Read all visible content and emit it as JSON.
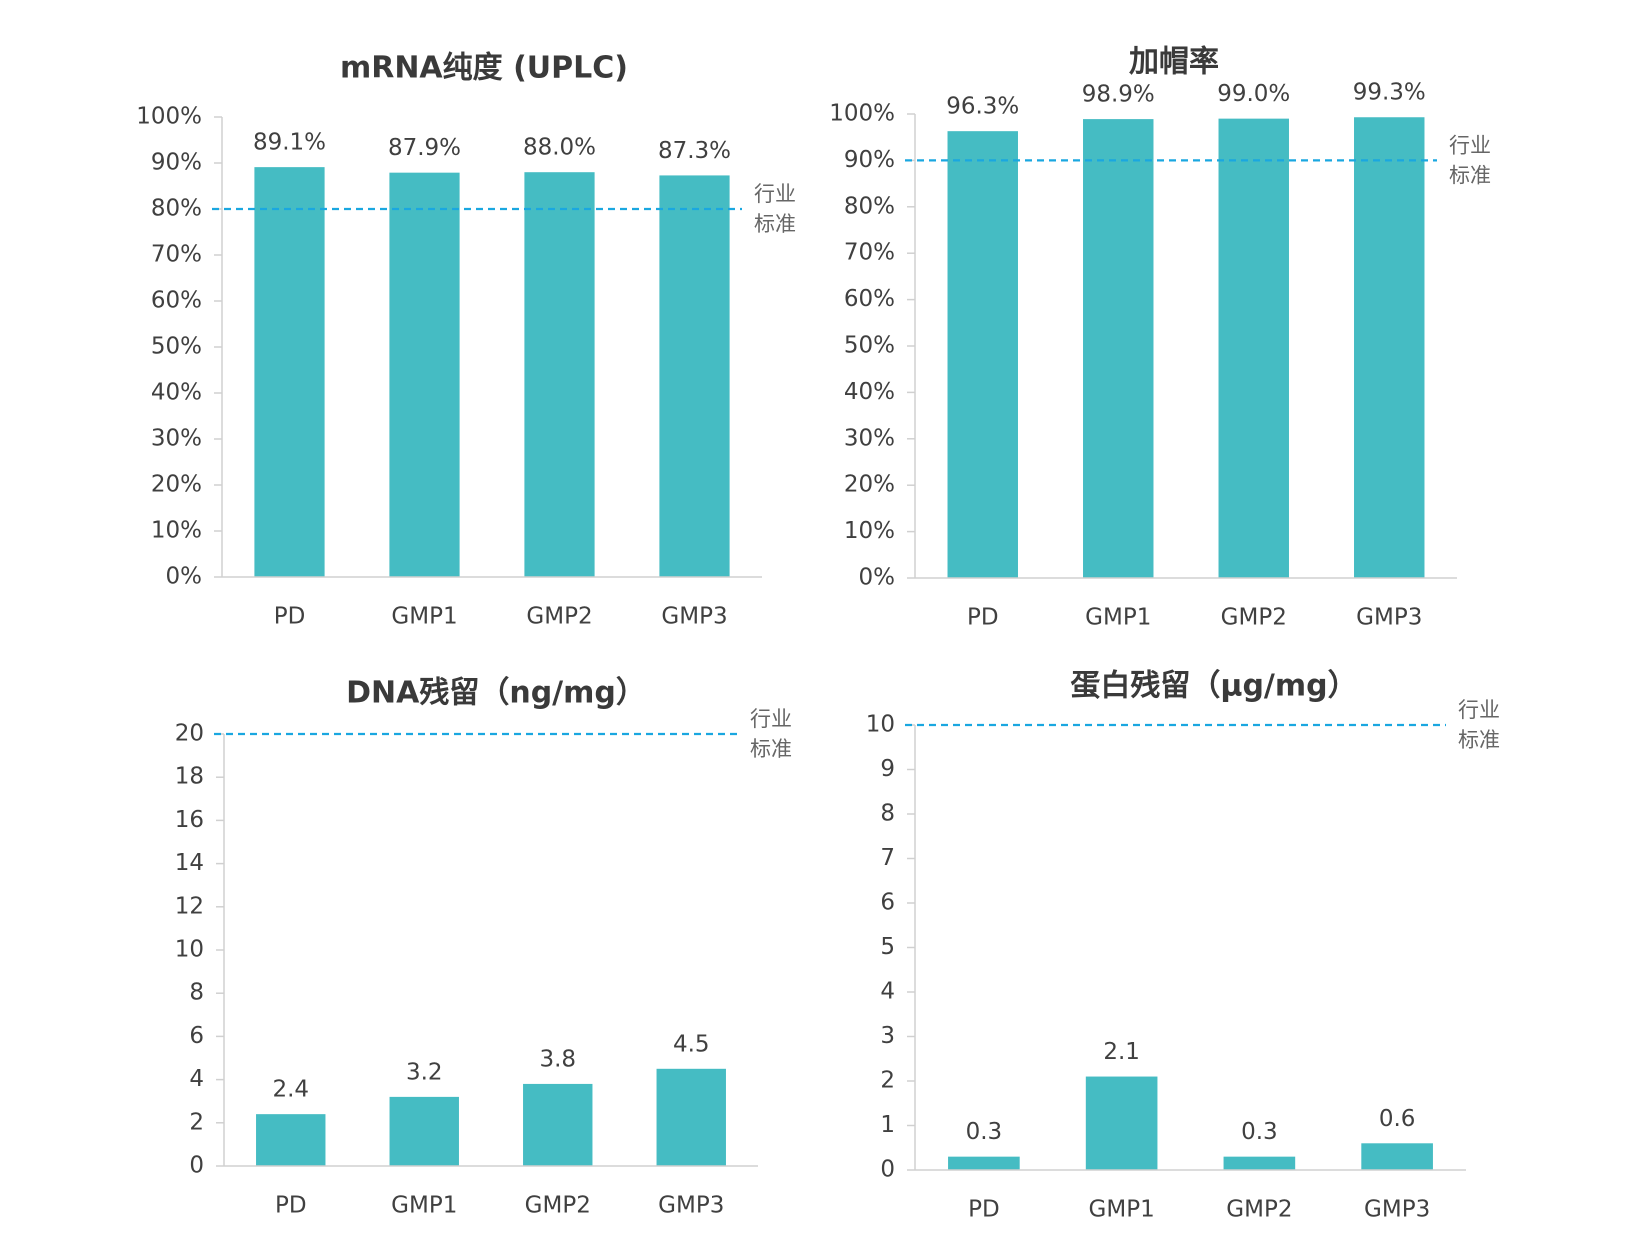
{
  "chart_data": [
    {
      "type": "bar",
      "title": "mRNA纯度 (UPLC)",
      "categories": [
        "PD",
        "GMP1",
        "GMP2",
        "GMP3"
      ],
      "values": [
        89.1,
        87.9,
        88.0,
        87.3
      ],
      "value_labels": [
        "89.1%",
        "87.9%",
        "88.0%",
        "87.3%"
      ],
      "color": "#45bcc3",
      "ylim": [
        0,
        100
      ],
      "yticks": [
        {
          "value": 0,
          "label": "0%"
        },
        {
          "value": 10,
          "label": "10%"
        },
        {
          "value": 20,
          "label": "20%"
        },
        {
          "value": 30,
          "label": "30%"
        },
        {
          "value": 40,
          "label": "40%"
        },
        {
          "value": 50,
          "label": "50%"
        },
        {
          "value": 60,
          "label": "60%"
        },
        {
          "value": 70,
          "label": "70%"
        },
        {
          "value": 80,
          "label": "80%"
        },
        {
          "value": 90,
          "label": "90%"
        },
        {
          "value": 100,
          "label": "100%"
        }
      ],
      "reference_value": 80,
      "reference_label": [
        "行业",
        "标准"
      ],
      "reference_color": "#1aa7e0"
    },
    {
      "type": "bar",
      "title": "加帽率",
      "categories": [
        "PD",
        "GMP1",
        "GMP2",
        "GMP3"
      ],
      "values": [
        96.3,
        98.9,
        99.0,
        99.3
      ],
      "value_labels": [
        "96.3%",
        "98.9%",
        "99.0%",
        "99.3%"
      ],
      "color": "#45bcc3",
      "ylim": [
        0,
        100
      ],
      "yticks": [
        {
          "value": 0,
          "label": "0%"
        },
        {
          "value": 10,
          "label": "10%"
        },
        {
          "value": 20,
          "label": "20%"
        },
        {
          "value": 30,
          "label": "30%"
        },
        {
          "value": 40,
          "label": "40%"
        },
        {
          "value": 50,
          "label": "50%"
        },
        {
          "value": 60,
          "label": "60%"
        },
        {
          "value": 70,
          "label": "70%"
        },
        {
          "value": 80,
          "label": "80%"
        },
        {
          "value": 90,
          "label": "90%"
        },
        {
          "value": 100,
          "label": "100%"
        }
      ],
      "reference_value": 90,
      "reference_label": [
        "行业",
        "标准"
      ],
      "reference_color": "#1aa7e0"
    },
    {
      "type": "bar",
      "title": "DNA残留（ng/mg）",
      "categories": [
        "PD",
        "GMP1",
        "GMP2",
        "GMP3"
      ],
      "values": [
        2.4,
        3.2,
        3.8,
        4.5
      ],
      "color": "#45bcc3",
      "ylim": [
        0,
        20
      ],
      "yticks": [
        0,
        2,
        4,
        6,
        8,
        10,
        12,
        14,
        16,
        18,
        20
      ],
      "reference_value": 20,
      "reference_label": [
        "行业",
        "标准"
      ],
      "reference_color": "#1aa7e0"
    },
    {
      "type": "bar",
      "title": "蛋白残留（μg/mg）",
      "categories": [
        "PD",
        "GMP1",
        "GMP2",
        "GMP3"
      ],
      "values": [
        0.3,
        2.1,
        0.3,
        0.6
      ],
      "color": "#45bcc3",
      "ylim": [
        0,
        10
      ],
      "yticks": [
        0,
        1,
        2,
        3,
        4,
        5,
        6,
        7,
        8,
        9,
        10
      ],
      "reference_value": 10,
      "reference_label": [
        "行业",
        "标准"
      ],
      "reference_color": "#1aa7e0"
    }
  ]
}
